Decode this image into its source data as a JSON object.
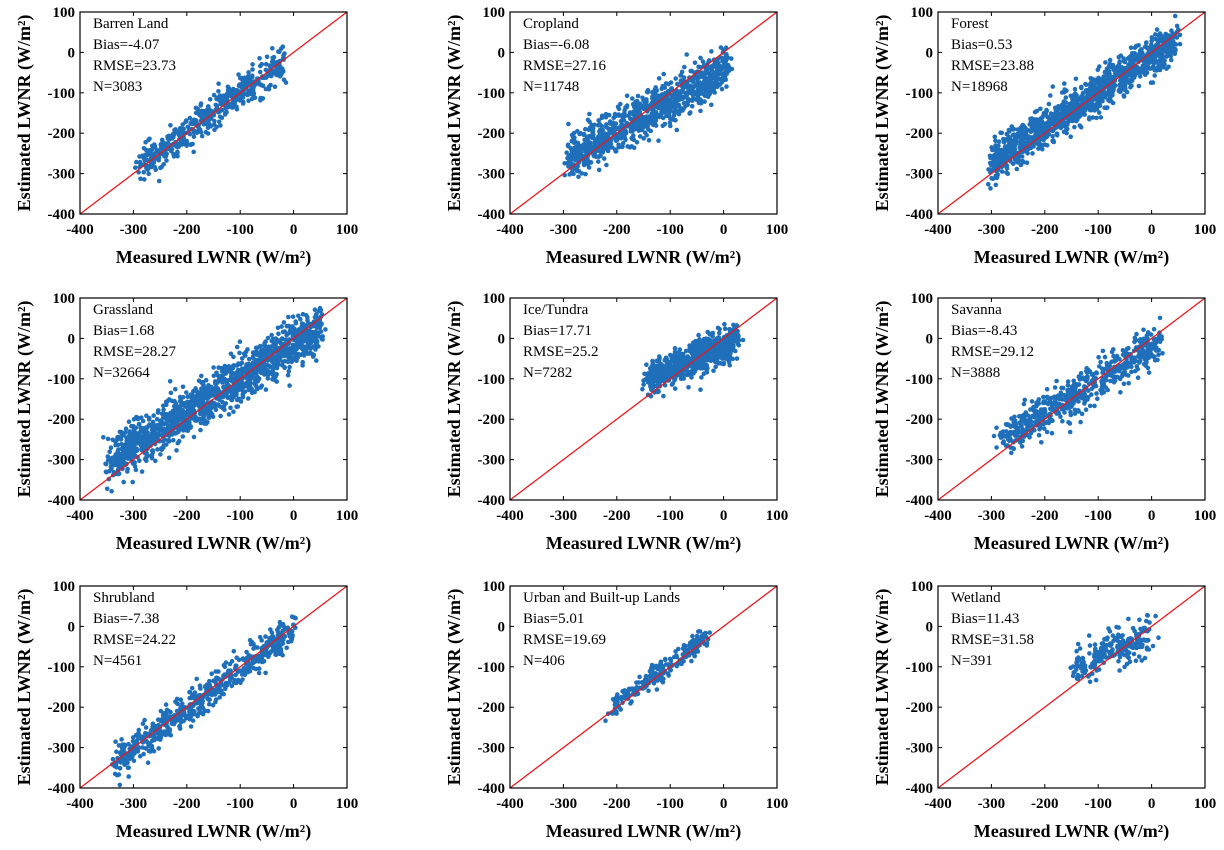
{
  "figure": {
    "xlabel": "Measured LWNR (W/m²)",
    "ylabel": "Estimated LWNR (W/m²)"
  },
  "chart_data": [
    {
      "type": "scatter",
      "title": "Barren Land",
      "annotations": [
        "Bias=-4.07",
        "RMSE=23.73",
        "N=3083"
      ],
      "xlabel": "Measured LWNR (W/m²)",
      "ylabel": "Estimated LWNR (W/m²)",
      "xlim": [
        -400,
        100
      ],
      "ylim": [
        -400,
        100
      ],
      "xticks": [
        -400,
        -300,
        -200,
        -100,
        0,
        100
      ],
      "yticks": [
        100,
        0,
        -100,
        -200,
        -300,
        -400
      ],
      "xtick_labels": [
        "-400",
        "-300",
        "-200",
        "-100",
        "0",
        "100"
      ],
      "ytick_labels": [
        "100",
        "0",
        "-100",
        "-200",
        "-300",
        "-400"
      ],
      "reference_line": "1:1",
      "grid": false,
      "point_color": "#1f6fba",
      "line_color": "#e8191c",
      "cloud": {
        "x_range": [
          -285,
          -15
        ],
        "slope": 0.95,
        "intercept": -5,
        "spread": 22
      }
    },
    {
      "type": "scatter",
      "title": "Cropland",
      "annotations": [
        "Bias=-6.08",
        "RMSE=27.16",
        "N=11748"
      ],
      "xlabel": "Measured LWNR (W/m²)",
      "ylabel": "Estimated LWNR (W/m²)",
      "xlim": [
        -400,
        100
      ],
      "ylim": [
        -400,
        100
      ],
      "xticks": [
        -400,
        -300,
        -200,
        -100,
        0,
        100
      ],
      "yticks": [
        100,
        0,
        -100,
        -200,
        -300,
        -400
      ],
      "xtick_labels": [
        "-400",
        "-300",
        "-200",
        "-100",
        "0",
        "100"
      ],
      "ytick_labels": [
        "100",
        "0",
        "-100",
        "-200",
        "-300",
        "-400"
      ],
      "reference_line": "1:1",
      "grid": false,
      "point_color": "#1f6fba",
      "line_color": "#e8191c",
      "cloud": {
        "x_range": [
          -290,
          8
        ],
        "slope": 0.75,
        "intercept": -45,
        "spread": 28
      }
    },
    {
      "type": "scatter",
      "title": "Forest",
      "annotations": [
        "Bias=0.53",
        "RMSE=23.88",
        "N=18968"
      ],
      "xlabel": "Measured LWNR (W/m²)",
      "ylabel": "Estimated LWNR (W/m²)",
      "xlim": [
        -400,
        100
      ],
      "ylim": [
        -400,
        100
      ],
      "xticks": [
        -400,
        -300,
        -200,
        -100,
        0,
        100
      ],
      "yticks": [
        100,
        0,
        -100,
        -200,
        -300,
        -400
      ],
      "xtick_labels": [
        "-400",
        "-300",
        "-200",
        "-100",
        "0",
        "100"
      ],
      "ytick_labels": [
        "100",
        "0",
        "-100",
        "-200",
        "-300",
        "-400"
      ],
      "reference_line": "1:1",
      "grid": false,
      "point_color": "#1f6fba",
      "line_color": "#e8191c",
      "cloud": {
        "x_range": [
          -300,
          45
        ],
        "slope": 0.88,
        "intercept": -10,
        "spread": 25
      }
    },
    {
      "type": "scatter",
      "title": "Grassland",
      "annotations": [
        "Bias=1.68",
        "RMSE=28.27",
        "N=32664"
      ],
      "xlabel": "Measured LWNR (W/m²)",
      "ylabel": "Estimated LWNR (W/m²)",
      "xlim": [
        -400,
        100
      ],
      "ylim": [
        -400,
        100
      ],
      "xticks": [
        -400,
        -300,
        -200,
        -100,
        0,
        100
      ],
      "yticks": [
        100,
        0,
        -100,
        -200,
        -300,
        -400
      ],
      "xtick_labels": [
        "-400",
        "-300",
        "-200",
        "-100",
        "0",
        "100"
      ],
      "ytick_labels": [
        "100",
        "0",
        "-100",
        "-200",
        "-300",
        "-400"
      ],
      "reference_line": "1:1",
      "grid": false,
      "point_color": "#1f6fba",
      "line_color": "#e8191c",
      "cloud": {
        "x_range": [
          -345,
          50
        ],
        "slope": 0.85,
        "intercept": -15,
        "spread": 30
      }
    },
    {
      "type": "scatter",
      "title": "Ice/Tundra",
      "annotations": [
        "Bias=17.71",
        "RMSE=25.2",
        "N=7282"
      ],
      "xlabel": "Measured LWNR (W/m²)",
      "ylabel": "Estimated LWNR (W/m²)",
      "xlim": [
        -400,
        100
      ],
      "ylim": [
        -400,
        100
      ],
      "xticks": [
        -400,
        -300,
        -200,
        -100,
        0,
        100
      ],
      "yticks": [
        100,
        0,
        -100,
        -200,
        -300,
        -400
      ],
      "xtick_labels": [
        "-400",
        "-300",
        "-200",
        "-100",
        "0",
        "100"
      ],
      "ytick_labels": [
        "100",
        "0",
        "-100",
        "-200",
        "-300",
        "-400"
      ],
      "reference_line": "1:1",
      "grid": false,
      "point_color": "#1f6fba",
      "line_color": "#e8191c",
      "cloud": {
        "x_range": [
          -140,
          25
        ],
        "slope": 0.55,
        "intercept": -20,
        "spread": 20
      }
    },
    {
      "type": "scatter",
      "title": "Savanna",
      "annotations": [
        "Bias=-8.43",
        "RMSE=29.12",
        "N=3888"
      ],
      "xlabel": "Measured LWNR (W/m²)",
      "ylabel": "Estimated LWNR (W/m²)",
      "xlim": [
        -400,
        100
      ],
      "ylim": [
        -400,
        100
      ],
      "xticks": [
        -400,
        -300,
        -200,
        -100,
        0,
        100
      ],
      "yticks": [
        100,
        0,
        -100,
        -200,
        -300,
        -400
      ],
      "xtick_labels": [
        "-400",
        "-300",
        "-200",
        "-100",
        "0",
        "100"
      ],
      "ytick_labels": [
        "100",
        "0",
        "-100",
        "-200",
        "-300",
        "-400"
      ],
      "reference_line": "1:1",
      "grid": false,
      "point_color": "#1f6fba",
      "line_color": "#e8191c",
      "cloud": {
        "x_range": [
          -285,
          15
        ],
        "slope": 0.8,
        "intercept": -25,
        "spread": 26
      }
    },
    {
      "type": "scatter",
      "title": "Shrubland",
      "annotations": [
        "Bias=-7.38",
        "RMSE=24.22",
        "N=4561"
      ],
      "xlabel": "Measured LWNR (W/m²)",
      "ylabel": "Estimated LWNR (W/m²)",
      "xlim": [
        -400,
        100
      ],
      "ylim": [
        -400,
        100
      ],
      "xticks": [
        -400,
        -300,
        -200,
        -100,
        0,
        100
      ],
      "yticks": [
        100,
        0,
        -100,
        -200,
        -300,
        -400
      ],
      "xtick_labels": [
        "-400",
        "-300",
        "-200",
        "-100",
        "0",
        "100"
      ],
      "ytick_labels": [
        "100",
        "0",
        "-100",
        "-200",
        "-300",
        "-400"
      ],
      "reference_line": "1:1",
      "grid": false,
      "point_color": "#1f6fba",
      "line_color": "#e8191c",
      "cloud": {
        "x_range": [
          -335,
          0
        ],
        "slope": 0.98,
        "intercept": -10,
        "spread": 20
      }
    },
    {
      "type": "scatter",
      "title": "Urban and Built-up Lands",
      "annotations": [
        "Bias=5.01",
        "RMSE=19.69",
        "N=406"
      ],
      "xlabel": "Measured LWNR (W/m²)",
      "ylabel": "Estimated LWNR (W/m²)",
      "xlim": [
        -400,
        100
      ],
      "ylim": [
        -400,
        100
      ],
      "xticks": [
        -400,
        -300,
        -200,
        -100,
        0,
        100
      ],
      "yticks": [
        100,
        0,
        -100,
        -200,
        -300,
        -400
      ],
      "xtick_labels": [
        "-400",
        "-300",
        "-200",
        "-100",
        "0",
        "100"
      ],
      "ytick_labels": [
        "100",
        "0",
        "-100",
        "-200",
        "-300",
        "-400"
      ],
      "reference_line": "1:1",
      "grid": false,
      "point_color": "#1f6fba",
      "line_color": "#e8191c",
      "cloud": {
        "x_range": [
          -210,
          -30
        ],
        "slope": 0.95,
        "intercept": 0,
        "spread": 14
      }
    },
    {
      "type": "scatter",
      "title": "Wetland",
      "annotations": [
        "Bias=11.43",
        "RMSE=31.58",
        "N=391"
      ],
      "xlabel": "Measured LWNR (W/m²)",
      "ylabel": "Estimated LWNR (W/m²)",
      "xlim": [
        -400,
        100
      ],
      "ylim": [
        -400,
        100
      ],
      "xticks": [
        -400,
        -300,
        -200,
        -100,
        0,
        100
      ],
      "yticks": [
        100,
        0,
        -100,
        -200,
        -300,
        -400
      ],
      "xtick_labels": [
        "-400",
        "-300",
        "-200",
        "-100",
        "0",
        "100"
      ],
      "ytick_labels": [
        "100",
        "0",
        "-100",
        "-200",
        "-300",
        "-400"
      ],
      "reference_line": "1:1",
      "grid": false,
      "point_color": "#1f6fba",
      "line_color": "#e8191c",
      "cloud": {
        "x_range": [
          -145,
          0
        ],
        "slope": 0.5,
        "intercept": -25,
        "spread": 22
      }
    }
  ]
}
